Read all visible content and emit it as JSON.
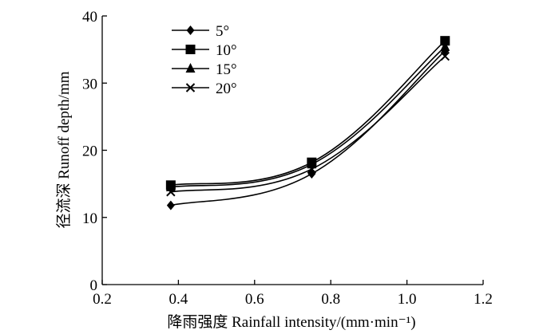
{
  "chart_data": {
    "type": "line",
    "title": "",
    "xlabel": "降雨强度 Rainfall intensity/(mm·min⁻¹)",
    "ylabel": "径流深 Runoff depth/mm",
    "xlim": [
      0.2,
      1.2
    ],
    "ylim": [
      0,
      40
    ],
    "xticks": [
      "0.2",
      "0.4",
      "0.6",
      "0.8",
      "1.0",
      "1.2"
    ],
    "yticks": [
      "0",
      "10",
      "20",
      "30",
      "40"
    ],
    "grid": false,
    "legend_position": "top-left",
    "x": [
      0.38,
      0.75,
      1.1
    ],
    "series": [
      {
        "name": "5°",
        "marker": "diamond",
        "values": [
          11.8,
          16.5,
          34.8
        ]
      },
      {
        "name": "10°",
        "marker": "square",
        "values": [
          14.8,
          18.2,
          36.3
        ]
      },
      {
        "name": "15°",
        "marker": "triangle",
        "values": [
          14.5,
          17.9,
          35.4
        ]
      },
      {
        "name": "20°",
        "marker": "cross",
        "values": [
          13.8,
          17.2,
          34.0
        ]
      }
    ]
  }
}
